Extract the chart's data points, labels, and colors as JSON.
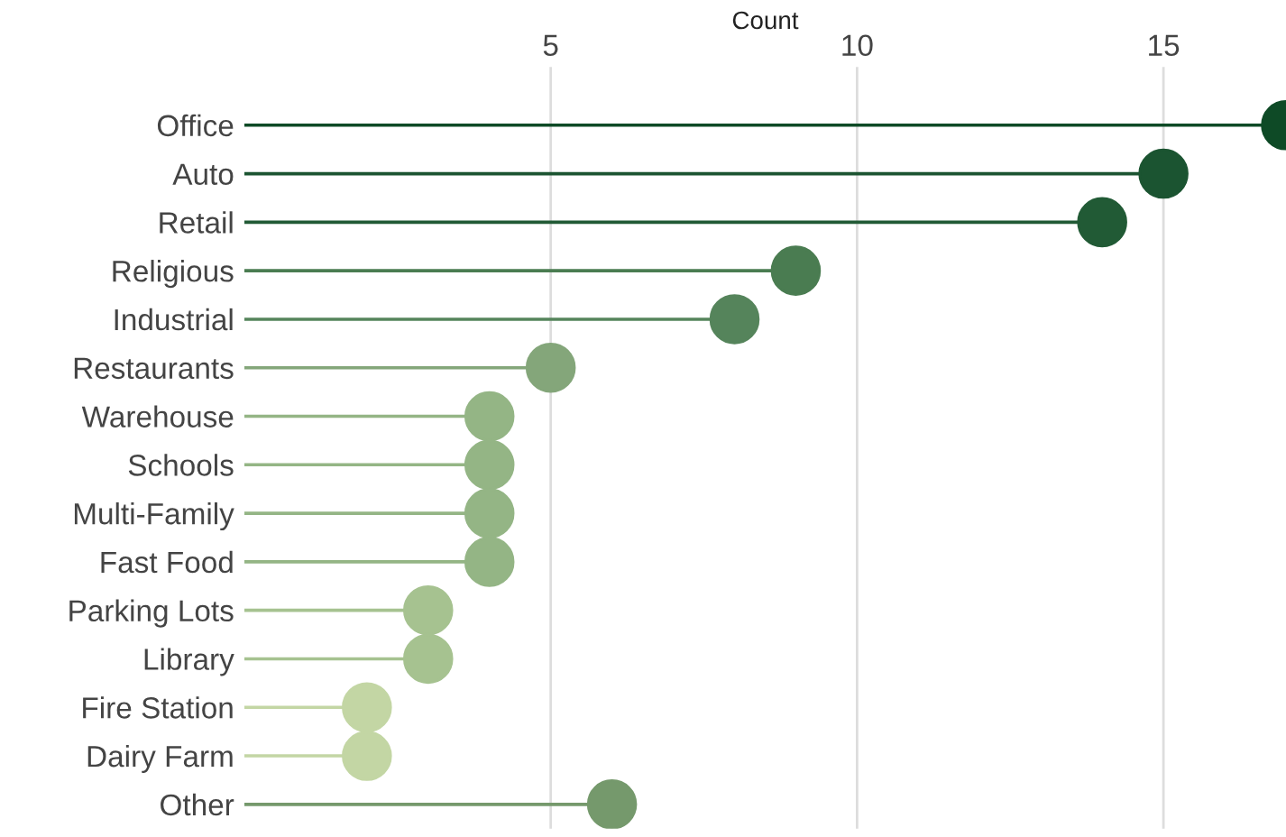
{
  "chart_data": {
    "type": "lollipop",
    "orientation": "horizontal",
    "xlabel": "Count",
    "categories": [
      "Office",
      "Auto",
      "Retail",
      "Religious",
      "Industrial",
      "Restaurants",
      "Warehouse",
      "Schools",
      "Multi-Family",
      "Fast Food",
      "Parking Lots",
      "Library",
      "Fire Station",
      "Dairy Farm",
      "Other"
    ],
    "values": [
      17,
      15,
      14,
      9,
      8,
      5,
      4,
      4,
      4,
      4,
      3,
      3,
      2,
      2,
      6
    ],
    "colors": [
      "#0e4a26",
      "#1b5431",
      "#215a35",
      "#4a7c51",
      "#55845b",
      "#84a67a",
      "#94b585",
      "#94b585",
      "#94b585",
      "#94b585",
      "#a6c290",
      "#a6c290",
      "#c3d6a4",
      "#c3d6a4",
      "#75996c"
    ],
    "xlim": [
      0,
      17
    ],
    "xticks": [
      5,
      10,
      15
    ],
    "grid": "x",
    "marker": "circle"
  }
}
